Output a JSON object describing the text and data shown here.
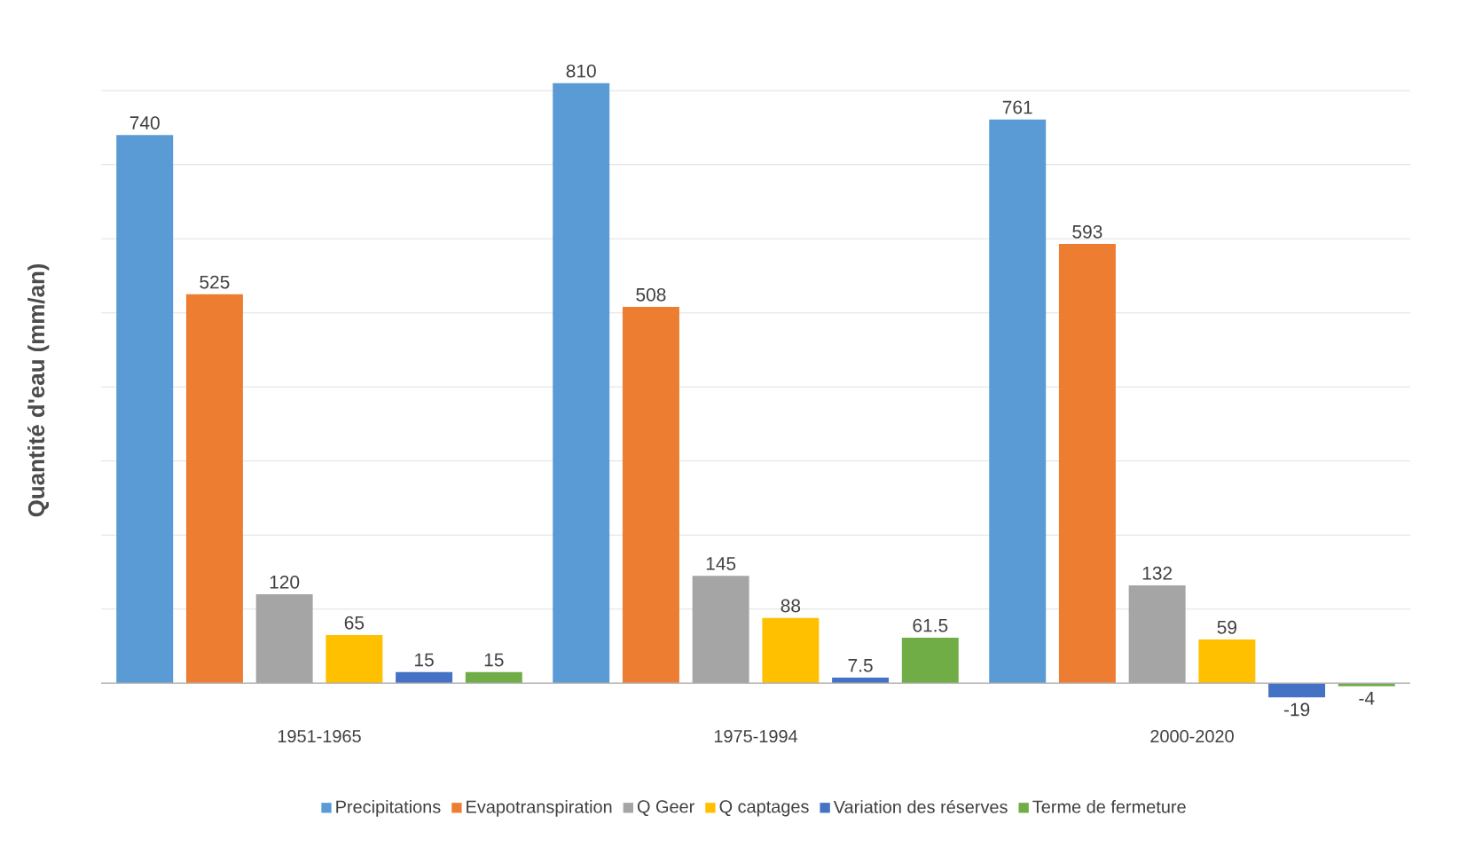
{
  "chart_data": {
    "type": "bar",
    "ylabel": "Quantité d'eau (mm/an)",
    "categories": [
      "1951-1965",
      "1975-1994",
      "2000-2020"
    ],
    "series": [
      {
        "name": "Precipitations",
        "color": "#5b9bd5",
        "values": [
          740,
          810,
          761
        ]
      },
      {
        "name": "Evapotranspiration",
        "color": "#ed7d31",
        "values": [
          525,
          508,
          593
        ]
      },
      {
        "name": "Q Geer",
        "color": "#a5a5a5",
        "values": [
          120,
          145,
          132
        ]
      },
      {
        "name": "Q captages",
        "color": "#ffc000",
        "values": [
          65,
          88,
          59
        ]
      },
      {
        "name": "Variation des réserves",
        "color": "#4472c4",
        "values": [
          15,
          7.5,
          -19
        ]
      },
      {
        "name": "Terme de fermeture",
        "color": "#70ad47",
        "values": [
          15,
          61.5,
          -4
        ]
      }
    ],
    "yticks": [
      {
        "value": 100,
        "label": null
      },
      {
        "value": 200,
        "label": null
      },
      {
        "value": 300,
        "label": null
      },
      {
        "value": 400,
        "label": null
      },
      {
        "value": 500,
        "label": null
      },
      {
        "value": 600,
        "label": null
      },
      {
        "value": 700,
        "label": null
      },
      {
        "value": 800,
        "label": null
      }
    ],
    "tick_labels": "x",
    "grid": "y",
    "legend": "bottom",
    "data_labels": true
  }
}
